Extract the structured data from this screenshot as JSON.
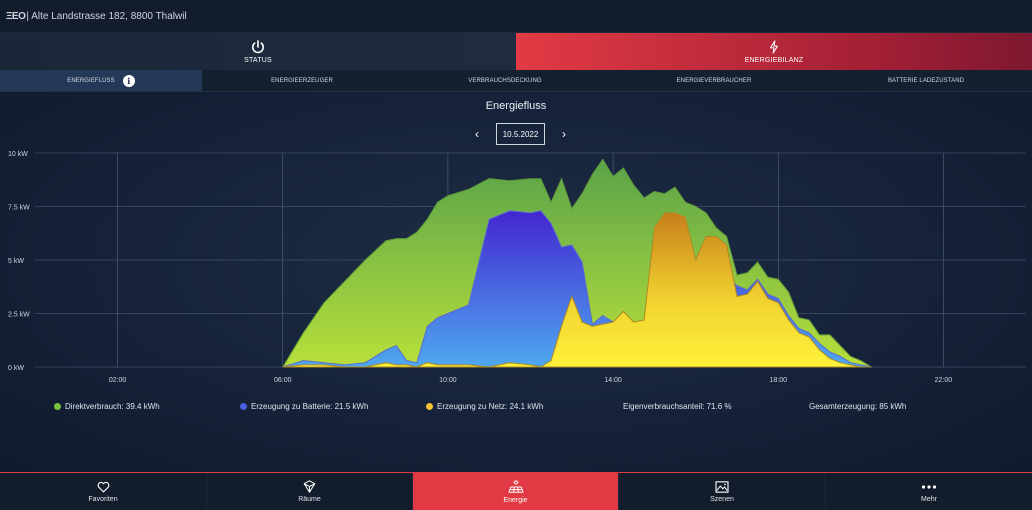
{
  "header": {
    "logo": "ΞΕΟ",
    "address": "| Alte Landstrasse 182, 8800 Thalwil"
  },
  "topnav": [
    {
      "label": "STATUS",
      "icon": "power-icon"
    },
    {
      "label": "ENERGIEBILANZ",
      "icon": "lightning-icon"
    }
  ],
  "subtabs": [
    {
      "label": "ENERGIEFLUSS",
      "active": true
    },
    {
      "label": "ENERGIEERZEUGER"
    },
    {
      "label": "VERBRAUCHSDECKUNG"
    },
    {
      "label": "ENERGIEVERBRAUCHER"
    },
    {
      "label": "BATTERIE LADEZUSTAND"
    }
  ],
  "info_icon": "i",
  "chart_title": "Energiefluss",
  "date": {
    "value": "10.5.2022",
    "prev": "‹",
    "next": "›"
  },
  "chart_data": {
    "type": "area",
    "title": "Energiefluss",
    "xlabel": "",
    "ylabel": "",
    "xlim": [
      0,
      24
    ],
    "ylim": [
      0,
      10
    ],
    "x_ticks": [
      2,
      6,
      10,
      14,
      18,
      22
    ],
    "x_tick_labels": [
      "02:00",
      "06:00",
      "10:00",
      "14:00",
      "18:00",
      "22:00"
    ],
    "y_ticks": [
      0,
      2.5,
      5,
      7.5,
      10
    ],
    "y_tick_labels": [
      "0 kW",
      "2.5 kW",
      "5 kW",
      "7.5 kW",
      "10 kW"
    ],
    "grid": true,
    "series": [
      {
        "name": "Direktverbrauch: 39.4 kWh",
        "color": "#7cc242",
        "x": [
          6,
          6.5,
          7,
          7.5,
          8,
          8.5,
          8.75,
          9,
          9.25,
          9.5,
          9.75,
          10,
          10.5,
          11,
          11.5,
          12,
          12.25,
          12.5,
          12.75,
          13,
          13.25,
          13.5,
          13.75,
          14,
          14.25,
          14.5,
          14.75,
          15,
          15.25,
          15.5,
          15.75,
          16,
          16.25,
          16.5,
          16.75,
          17,
          17.25,
          17.5,
          17.75,
          18,
          18.25,
          18.5,
          18.75,
          19,
          19.25,
          19.5,
          19.75,
          20,
          20.25
        ],
        "total": [
          0,
          1.6,
          3,
          4,
          5,
          5.9,
          6.0,
          6.0,
          6.3,
          6.9,
          7.7,
          8.0,
          8.3,
          8.8,
          8.7,
          8.8,
          8.8,
          7.7,
          8.8,
          7.4,
          8.1,
          9.0,
          9.7,
          8.9,
          9.3,
          8.5,
          7.9,
          8.2,
          8.1,
          8.4,
          7.7,
          7.5,
          7.2,
          6.5,
          6.1,
          4.3,
          4.4,
          4.9,
          4.2,
          4.1,
          3.5,
          2.3,
          2.2,
          1.5,
          1.5,
          1.0,
          0.5,
          0.3,
          0
        ]
      },
      {
        "name": "Erzeugung zu Batterie: 21.5 kWh",
        "color": "#4a5fe0",
        "x": [
          6,
          6.5,
          7,
          7.5,
          8,
          8.5,
          8.75,
          9,
          9.25,
          9.5,
          9.75,
          10,
          10.5,
          11,
          11.5,
          12,
          12.25,
          12.5,
          12.75,
          13,
          13.25,
          13.5,
          13.75,
          14,
          14.25,
          14.5,
          14.75,
          15,
          15.25,
          15.5,
          15.75,
          16,
          16.25,
          16.5,
          16.75,
          17,
          17.25,
          17.5,
          17.75,
          18,
          18.25,
          18.5,
          18.75,
          19,
          19.25,
          19.5,
          19.75,
          20,
          20.25
        ],
        "total": [
          0,
          0.3,
          0.2,
          0.1,
          0.2,
          0.8,
          1.0,
          0.3,
          0.2,
          1.9,
          2.3,
          2.5,
          2.9,
          6.9,
          7.3,
          7.2,
          7.3,
          6.7,
          5.6,
          5.7,
          4.9,
          2.0,
          2.4,
          2.1,
          2.4,
          2.0,
          2.2,
          4.5,
          5.2,
          5.0,
          5.3,
          4.8,
          4.8,
          4.5,
          4.2,
          3.8,
          3.6,
          4.1,
          3.4,
          3.2,
          2.4,
          1.8,
          1.6,
          1.1,
          0.7,
          0.5,
          0.2,
          0.1,
          0
        ]
      },
      {
        "name": "Erzeugung zu Netz: 24.1 kWh",
        "color": "#f2c230",
        "x": [
          6,
          6.5,
          7,
          7.5,
          8,
          8.5,
          8.75,
          9,
          9.25,
          9.5,
          9.75,
          10,
          10.5,
          11,
          11.5,
          12,
          12.25,
          12.5,
          12.75,
          13,
          13.25,
          13.5,
          13.75,
          14,
          14.25,
          14.5,
          14.75,
          15,
          15.25,
          15.5,
          15.75,
          16,
          16.25,
          16.5,
          16.75,
          17,
          17.25,
          17.5,
          17.75,
          18,
          18.25,
          18.5,
          18.75,
          19,
          19.25,
          19.5,
          19.75,
          20,
          20.25
        ],
        "total": [
          0,
          0.1,
          0.1,
          0,
          0,
          0.2,
          0.1,
          0.1,
          0,
          0.2,
          0.1,
          0.1,
          0.1,
          0,
          0.2,
          0.1,
          0,
          0.3,
          1.9,
          3.3,
          2.1,
          1.9,
          2.0,
          2.1,
          2.6,
          2.1,
          2.2,
          6.5,
          7.2,
          7.2,
          7.0,
          5.0,
          6.1,
          6.1,
          5.7,
          3.3,
          3.4,
          4.0,
          3.2,
          3.0,
          2.2,
          1.6,
          1.4,
          0.8,
          0.4,
          0.2,
          0.1,
          0,
          0
        ]
      }
    ]
  },
  "legend": [
    {
      "label": "Direktverbrauch: 39.4 kWh",
      "color": "#7cc242"
    },
    {
      "label": "Erzeugung zu Batterie: 21.5 kWh",
      "color": "#4a5fe0"
    },
    {
      "label": "Erzeugung zu Netz: 24.1 kWh",
      "color": "#f2c230"
    }
  ],
  "stats": {
    "eigenverbrauch": "Eigenverbrauchsanteil: 71.6 %",
    "gesamt": "Gesamterzeugung: 85 kWh"
  },
  "bottomnav": [
    {
      "label": "Favoriten",
      "icon": "heart-icon"
    },
    {
      "label": "Räume",
      "icon": "cube-icon"
    },
    {
      "label": "Energie",
      "icon": "solar-panel-icon",
      "active": true
    },
    {
      "label": "Szenen",
      "icon": "image-icon"
    },
    {
      "label": "Mehr",
      "icon": "more-icon"
    }
  ]
}
